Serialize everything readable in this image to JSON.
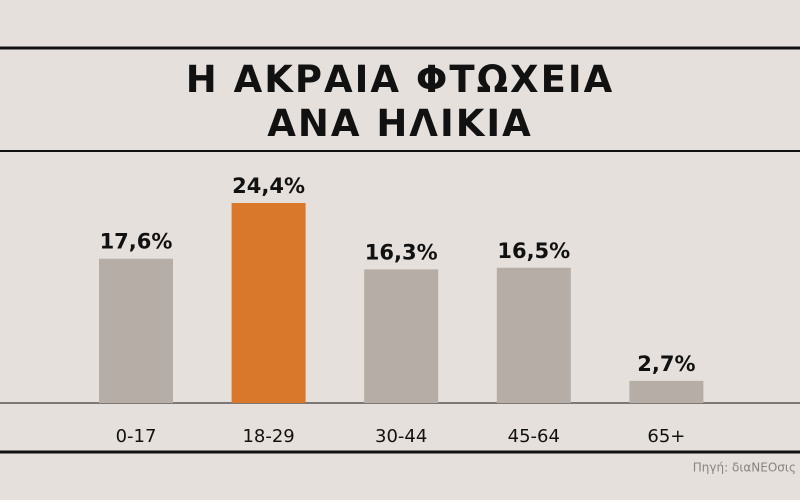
{
  "chart_data": {
    "type": "bar",
    "title": "Η ΑΚΡΑΙΑ ΦΤΩΧΕΙΑ ΑΝΑ ΗΛΙΚΙΑ",
    "categories": [
      "0-17",
      "18-29",
      "30-44",
      "45-64",
      "65+"
    ],
    "values": [
      17.6,
      24.4,
      16.3,
      16.5,
      2.7
    ],
    "value_labels": [
      "17,6%",
      "24,4%",
      "16,3%",
      "16,5%",
      "2,7%"
    ],
    "colors": [
      "#b5ada6",
      "#d9772b",
      "#b5ada6",
      "#b5ada6",
      "#b5ada6"
    ],
    "source": "Πηγή: διαΝΕΟσις"
  }
}
